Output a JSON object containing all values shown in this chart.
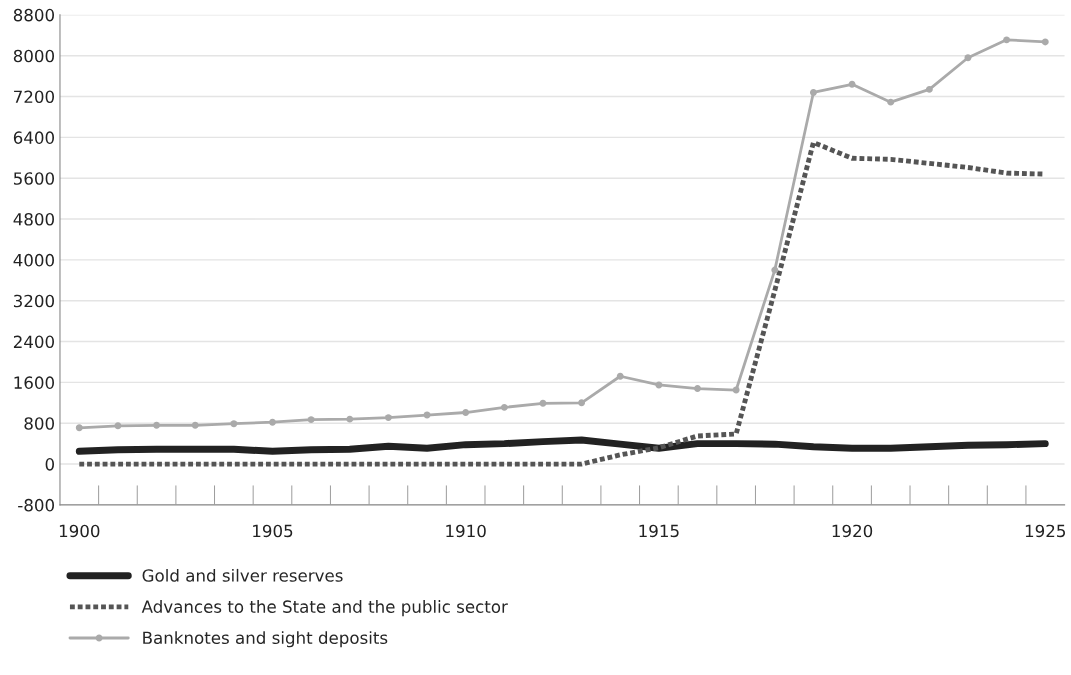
{
  "chart_data": {
    "type": "line",
    "categories": [
      "1900",
      null,
      null,
      null,
      null,
      "1905",
      null,
      null,
      null,
      null,
      "1910",
      null,
      null,
      null,
      null,
      "1915",
      null,
      null,
      null,
      null,
      "1920",
      null,
      null,
      null,
      null,
      "1925"
    ],
    "series": [
      {
        "name": "Gold and silver reserves",
        "color": "#222222",
        "line_style": "solid",
        "marker": "none",
        "values": [
          250,
          280,
          290,
          290,
          290,
          250,
          280,
          290,
          350,
          310,
          380,
          400,
          440,
          470,
          390,
          310,
          400,
          400,
          390,
          340,
          310,
          310,
          340,
          370,
          380,
          400
        ]
      },
      {
        "name": "Advances to the State and the public sector",
        "color": "#555555",
        "line_style": "dotted",
        "marker": "none",
        "values": [
          0,
          0,
          0,
          0,
          0,
          0,
          0,
          0,
          0,
          0,
          0,
          0,
          0,
          0,
          180,
          320,
          550,
          590,
          3400,
          6300,
          5990,
          5970,
          5890,
          5810,
          5700,
          5680
        ]
      },
      {
        "name": "Banknotes and sight deposits",
        "color": "#aaaaaa",
        "line_style": "solid",
        "marker": "circle",
        "values": [
          710,
          750,
          760,
          760,
          790,
          820,
          870,
          880,
          910,
          960,
          1010,
          1110,
          1190,
          1200,
          1720,
          1550,
          1480,
          1450,
          3800,
          7280,
          7440,
          7090,
          7340,
          7960,
          8310,
          8270
        ]
      }
    ],
    "ylim": [
      -800,
      8800
    ],
    "yticks": [
      -800,
      0,
      800,
      1600,
      2400,
      3200,
      4000,
      4800,
      5600,
      6400,
      7200,
      8000,
      8800
    ],
    "grid": "y",
    "legend": "bottom left"
  }
}
